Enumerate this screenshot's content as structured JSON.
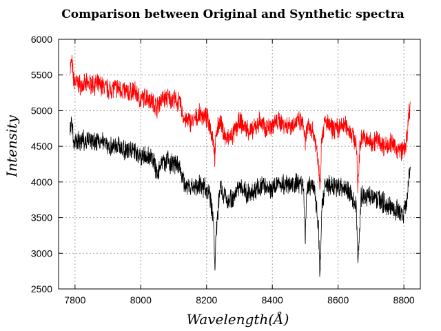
{
  "chart_data": {
    "type": "line",
    "title": "Comparison between Original and Synthetic spectra",
    "xlabel": "Wavelength(Å)",
    "ylabel": "Intensity",
    "xlim": [
      7750,
      8850
    ],
    "ylim": [
      2500,
      6000
    ],
    "xticks": [
      7800,
      8000,
      8200,
      8400,
      8600,
      8800
    ],
    "yticks": [
      2500,
      3000,
      3500,
      4000,
      4500,
      5000,
      5500,
      6000
    ],
    "grid": true,
    "legend": "none",
    "colors": {
      "original": "#000000",
      "synthetic": "#ff0000"
    },
    "series": [
      {
        "color": "#ff0000",
        "x": [
          7785,
          7790,
          7795,
          7800,
          7820,
          7850,
          7880,
          7900,
          7920,
          7940,
          7960,
          7980,
          8000,
          8020,
          8040,
          8050,
          8060,
          8080,
          8100,
          8120,
          8130,
          8140,
          8160,
          8180,
          8200,
          8210,
          8220,
          8225,
          8230,
          8240,
          8260,
          8280,
          8300,
          8320,
          8340,
          8360,
          8380,
          8400,
          8420,
          8440,
          8460,
          8480,
          8495,
          8500,
          8505,
          8520,
          8530,
          8540,
          8545,
          8550,
          8560,
          8580,
          8600,
          8620,
          8640,
          8655,
          8660,
          8665,
          8670,
          8680,
          8700,
          8720,
          8740,
          8760,
          8780,
          8800,
          8810,
          8815,
          8820
        ],
        "y": [
          5600,
          5700,
          5450,
          5400,
          5350,
          5380,
          5350,
          5300,
          5320,
          5300,
          5250,
          5280,
          5150,
          5200,
          5100,
          5050,
          5150,
          5180,
          5150,
          5100,
          4900,
          4850,
          4850,
          4950,
          4900,
          4800,
          4600,
          4350,
          4700,
          4850,
          4600,
          4650,
          4850,
          4750,
          4700,
          4850,
          4750,
          4800,
          4850,
          4800,
          4800,
          4850,
          4800,
          4500,
          4750,
          4750,
          4600,
          4300,
          3950,
          4600,
          4850,
          4750,
          4750,
          4800,
          4700,
          4550,
          3900,
          4400,
          4650,
          4600,
          4550,
          4600,
          4500,
          4550,
          4450,
          4450,
          4600,
          4950,
          5050
        ]
      },
      {
        "color": "#000000",
        "x": [
          7785,
          7790,
          7795,
          7800,
          7820,
          7850,
          7880,
          7900,
          7920,
          7940,
          7960,
          7980,
          8000,
          8020,
          8040,
          8050,
          8060,
          8080,
          8100,
          8120,
          8130,
          8140,
          8160,
          8180,
          8200,
          8210,
          8220,
          8225,
          8230,
          8240,
          8260,
          8280,
          8300,
          8320,
          8340,
          8360,
          8380,
          8400,
          8420,
          8440,
          8460,
          8480,
          8495,
          8500,
          8505,
          8520,
          8530,
          8540,
          8545,
          8550,
          8560,
          8580,
          8600,
          8620,
          8640,
          8655,
          8660,
          8665,
          8670,
          8680,
          8700,
          8720,
          8740,
          8760,
          8780,
          8800,
          8810,
          8815,
          8820
        ],
        "y": [
          4800,
          4850,
          4600,
          4550,
          4580,
          4600,
          4550,
          4520,
          4500,
          4480,
          4450,
          4450,
          4350,
          4350,
          4300,
          4100,
          4250,
          4300,
          4250,
          4200,
          4000,
          3950,
          3900,
          3950,
          3900,
          3800,
          3500,
          2850,
          3300,
          3950,
          3750,
          3750,
          3950,
          3850,
          3850,
          3950,
          3950,
          3900,
          4000,
          3950,
          3950,
          4000,
          3950,
          3200,
          3900,
          3950,
          3850,
          3400,
          2650,
          3600,
          3950,
          3950,
          3900,
          3950,
          3800,
          3650,
          2900,
          3300,
          3800,
          3800,
          3800,
          3750,
          3700,
          3650,
          3600,
          3550,
          3800,
          4100,
          4250
        ]
      }
    ]
  }
}
